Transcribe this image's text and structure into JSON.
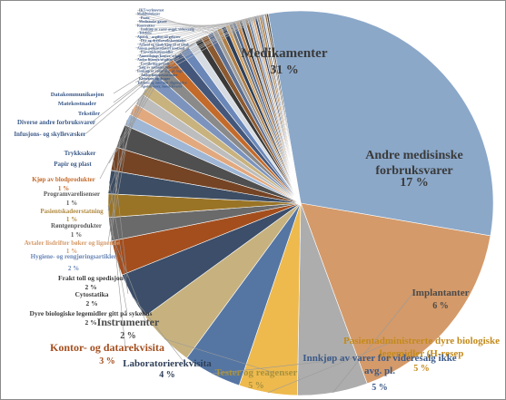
{
  "colors": {
    "background": "#ffffff",
    "border": "#8a8a8a"
  },
  "chart_data": {
    "type": "pie",
    "title": "",
    "slices": [
      {
        "name": "Medikamenter",
        "value": 31,
        "pct": "31 %",
        "color": "#8BA8C9"
      },
      {
        "name": "Andre medisinske forbruksvarer",
        "value": 17,
        "pct": "17 %",
        "color": "#D49A6A"
      },
      {
        "name": "Implantanter",
        "value": 6,
        "pct": "6 %",
        "color": "#ADADAD"
      },
      {
        "name": "Pasientadministrerte dyre biologiske legemidler (H-resep",
        "value": 5,
        "pct": "5 %",
        "color": "#EEBA4E"
      },
      {
        "name": "Innkjøp av varer for videresalg ikke avg. pl.",
        "value": 5,
        "pct": "5 %",
        "color": "#5576A3"
      },
      {
        "name": "Tester og reagenser",
        "value": 5,
        "pct": "5 %",
        "color": "#C7B27F"
      },
      {
        "name": "Laboratorierekvisita",
        "value": 4,
        "pct": "4 %",
        "color": "#3C4E69"
      },
      {
        "name": "Kontor- og datarekvisita",
        "value": 3,
        "pct": "3 %",
        "color": "#A44E1E"
      },
      {
        "name": "Instrumenter",
        "value": 2,
        "pct": "2 %",
        "color": "#6A6A6A"
      },
      {
        "name": "Dyre biologiske legemidler gitt på sykehus",
        "value": 2,
        "pct": "2 %",
        "color": "#9A7426"
      },
      {
        "name": "Cytostatika",
        "value": 2,
        "pct": "2 %",
        "color": "#3D4D63"
      },
      {
        "name": "Frakt toll og spedisjon",
        "value": 2,
        "pct": "2 %",
        "color": "#754424"
      },
      {
        "name": "Hygiene- og rengjøringsartikler",
        "value": 2,
        "pct": "2 %",
        "color": "#4F4F4F"
      },
      {
        "name": "Avtaler lisdrifter bøker og lignende",
        "value": 1,
        "pct": "1 %",
        "color": "#9FB6D4"
      },
      {
        "name": "Røntgenprodukter",
        "value": 1,
        "pct": "1 %",
        "color": "#E2A97F"
      },
      {
        "name": "Pasientskadeerstatning",
        "value": 1,
        "pct": "1 %",
        "color": "#BDBDBD"
      },
      {
        "name": "Programvarelisenser",
        "value": 1,
        "pct": "1 %",
        "color": "#C8B27E"
      },
      {
        "name": "Kjøp av blodprodukter",
        "value": 1,
        "pct": "1 %",
        "color": "#7C94BD"
      },
      {
        "name": "Papir og plast",
        "value": 1,
        "pct": "",
        "color": "#8A8A8A"
      },
      {
        "name": "Trykksaker",
        "value": 0.9,
        "pct": "",
        "color": "#C46B2B"
      },
      {
        "name": "Infusjons- og skyllevæsker",
        "value": 0.9,
        "pct": "",
        "color": "#44577A"
      },
      {
        "name": "Diverse andre forbruksvarer",
        "value": 0.8,
        "pct": "",
        "color": "#6A87B8"
      },
      {
        "name": "Tekstiler",
        "value": 0.7,
        "pct": "",
        "color": "#D7DCE3"
      },
      {
        "name": "Matekostnader",
        "value": 0.6,
        "pct": "",
        "color": "#3A3A3A"
      },
      {
        "name": "Datakommunikasjon",
        "value": 0.6,
        "pct": "",
        "color": "#8C5A30"
      },
      {
        "name": "IKT-verktøytest",
        "value": 0.5,
        "pct": "",
        "color": "#5E7092"
      },
      {
        "name": "Mobiltelefoner",
        "value": 0.4,
        "pct": "",
        "color": "#9C9C9C"
      },
      {
        "name": "Porto",
        "value": 0.4,
        "pct": "",
        "color": "#B07F45"
      },
      {
        "name": "Medisinske gasser",
        "value": 0.4,
        "pct": "",
        "color": "#2F3F58"
      },
      {
        "name": "Kontrakter",
        "value": 0.3,
        "pct": "",
        "color": "#D0A060"
      },
      {
        "name": "Innkjøp av varer avgpl. videresalg",
        "value": 0.3,
        "pct": "",
        "color": "#777777"
      },
      {
        "name": "Telefoni",
        "value": 0.3,
        "pct": "",
        "color": "#506A90"
      },
      {
        "name": "Apotek - avgifter til gebyrer",
        "value": 0.3,
        "pct": "",
        "color": "#C28A55"
      },
      {
        "name": "Dyr og dyreforsøkskostnader",
        "value": 0.25,
        "pct": "",
        "color": "#404040"
      },
      {
        "name": "Arbeid og tilsøk/kjøp til at tiltak",
        "value": 0.25,
        "pct": "",
        "color": "#A0B3CC"
      },
      {
        "name": "Annen pasientrelatert kostnad",
        "value": 0.25,
        "pct": "",
        "color": "#8F6030"
      },
      {
        "name": "Proveniekjøpsmidler",
        "value": 0.2,
        "pct": "",
        "color": "#667C9F"
      },
      {
        "name": "Anmodnings kontor/ sykepl",
        "value": 0.2,
        "pct": "",
        "color": "#BBBBBB"
      },
      {
        "name": "Andre lisenser/avgifter",
        "value": 0.2,
        "pct": "",
        "color": "#D8A574"
      },
      {
        "name": "Forsikringspremie",
        "value": 0.2,
        "pct": "",
        "color": "#34476A"
      },
      {
        "name": "Salg av tekniske tjenester",
        "value": 0.2,
        "pct": "",
        "color": "#9A9A9A"
      },
      {
        "name": "Innkjøp av varer avg. pl. lagr. salg",
        "value": 0.2,
        "pct": "",
        "color": "#B9884C"
      },
      {
        "name": "Andre kontorkostnader",
        "value": 0.15,
        "pct": "",
        "color": "#5A6F92"
      },
      {
        "name": "Klesvarer og drager",
        "value": 0.15,
        "pct": "",
        "color": "#CCCCCC"
      },
      {
        "name": "Telefoni og internett tilgjengelse",
        "value": 0.15,
        "pct": "",
        "color": "#8C6A3F"
      },
      {
        "name": "Apotekvarer, handelsvarer",
        "value": 0.15,
        "pct": "",
        "color": "#4A4A4A"
      }
    ]
  }
}
